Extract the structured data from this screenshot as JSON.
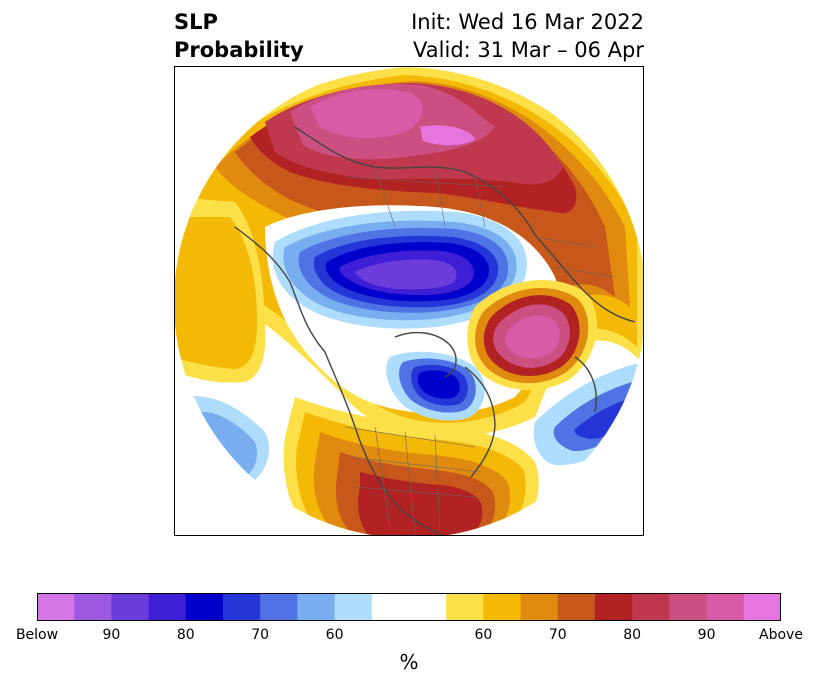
{
  "title": {
    "left_line1": "SLP",
    "left_line2": "Probability",
    "right_line1": "Init: Wed 16 Mar 2022",
    "right_line2": "Valid: 31 Mar – 06 Apr"
  },
  "map": {
    "projection": "polar-stereographic",
    "region": "Northern Hemisphere",
    "features": [
      {
        "name": "pink-above-high-over-eurasia",
        "category": "above",
        "level": 95
      },
      {
        "name": "pink-above-high-over-north-atlantic",
        "category": "above",
        "level": 95
      },
      {
        "name": "deep-blue-below-low-over-arctic",
        "category": "below",
        "level": 90
      },
      {
        "name": "blue-below-low-over-hudson-bay",
        "category": "below",
        "level": 85
      },
      {
        "name": "blue-below-low-over-mid-atlantic",
        "category": "below",
        "level": 80
      },
      {
        "name": "red-above-over-north-america",
        "category": "above",
        "level": 80
      },
      {
        "name": "blue-below-over-north-pacific",
        "category": "below",
        "level": 65
      }
    ]
  },
  "colorbar": {
    "unit_label": "%",
    "bins": [
      {
        "label": "Below",
        "color": "#d676e6"
      },
      {
        "label": "",
        "color": "#9d58e2"
      },
      {
        "label": "90",
        "color": "#6d3ddc"
      },
      {
        "label": "",
        "color": "#3f1fd6"
      },
      {
        "label": "80",
        "color": "#0000cc"
      },
      {
        "label": "",
        "color": "#2436d8"
      },
      {
        "label": "70",
        "color": "#4f73e4"
      },
      {
        "label": "",
        "color": "#78aef0"
      },
      {
        "label": "60",
        "color": "#aedcfc"
      },
      {
        "label": "",
        "color": "#ffffff"
      },
      {
        "label": "",
        "color": "#ffffff"
      },
      {
        "label": "60",
        "color": "#fde047"
      },
      {
        "label": "",
        "color": "#f4b806"
      },
      {
        "label": "70",
        "color": "#e08b10"
      },
      {
        "label": "",
        "color": "#c8571b"
      },
      {
        "label": "80",
        "color": "#b22222"
      },
      {
        "label": "",
        "color": "#c0384e"
      },
      {
        "label": "90",
        "color": "#cc4f82"
      },
      {
        "label": "",
        "color": "#d95ba8"
      },
      {
        "label": "Above",
        "color": "#e675e0"
      }
    ],
    "tick_labels": [
      "Below",
      "90",
      "80",
      "70",
      "60",
      "",
      "60",
      "70",
      "80",
      "90",
      "Above"
    ]
  }
}
